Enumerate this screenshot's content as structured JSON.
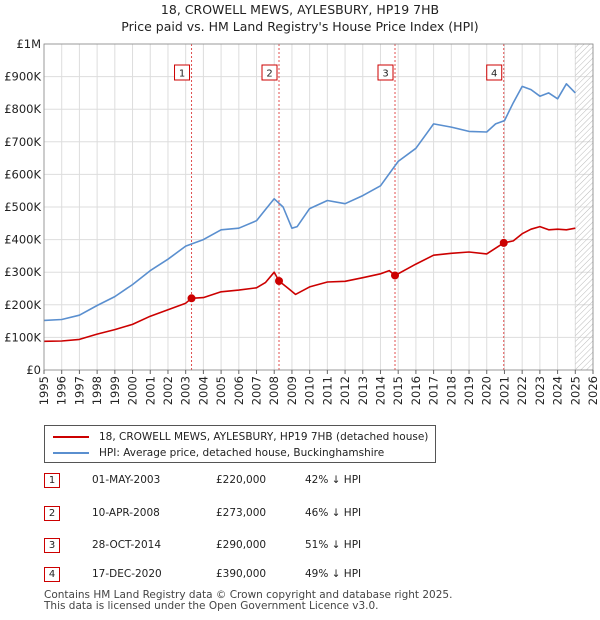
{
  "chart_data": {
    "type": "line",
    "title": "18, CROWELL MEWS, AYLESBURY, HP19 7HB",
    "subtitle": "Price paid vs. HM Land Registry's House Price Index (HPI)",
    "xlabel": "",
    "ylabel": "",
    "xlim": [
      1995,
      2026
    ],
    "ylim": [
      0,
      1000000
    ],
    "x_ticks": [
      "1995",
      "1996",
      "1997",
      "1998",
      "1999",
      "2000",
      "2001",
      "2002",
      "2003",
      "2004",
      "2005",
      "2006",
      "2007",
      "2008",
      "2009",
      "2010",
      "2011",
      "2012",
      "2013",
      "2014",
      "2015",
      "2016",
      "2017",
      "2018",
      "2019",
      "2020",
      "2021",
      "2022",
      "2023",
      "2024",
      "2025",
      "2026"
    ],
    "y_ticks": [
      {
        "value": 0,
        "label": "£0"
      },
      {
        "value": 100000,
        "label": "£100K"
      },
      {
        "value": 200000,
        "label": "£200K"
      },
      {
        "value": 300000,
        "label": "£300K"
      },
      {
        "value": 400000,
        "label": "£400K"
      },
      {
        "value": 500000,
        "label": "£500K"
      },
      {
        "value": 600000,
        "label": "£600K"
      },
      {
        "value": 700000,
        "label": "£700K"
      },
      {
        "value": 800000,
        "label": "£800K"
      },
      {
        "value": 900000,
        "label": "£900K"
      },
      {
        "value": 1000000,
        "label": "£1M"
      }
    ],
    "grid": true,
    "hatch_from": 2025.0,
    "series": [
      {
        "name": "18, CROWELL MEWS, AYLESBURY, HP19 7HB (detached house)",
        "color": "#cc0000",
        "x": [
          1995.0,
          1996.0,
          1997.0,
          1998.0,
          1999.0,
          2000.0,
          2001.0,
          2002.0,
          2003.0,
          2003.33,
          2004.0,
          2005.0,
          2006.0,
          2007.0,
          2007.5,
          2008.0,
          2008.27,
          2008.8,
          2009.2,
          2010.0,
          2011.0,
          2012.0,
          2013.0,
          2014.0,
          2014.5,
          2014.82,
          2015.5,
          2016.0,
          2017.0,
          2018.0,
          2019.0,
          2020.0,
          2020.96,
          2021.5,
          2022.0,
          2022.5,
          2023.0,
          2023.5,
          2024.0,
          2024.5,
          2025.0
        ],
        "y": [
          88000,
          89000,
          94000,
          110000,
          124000,
          140000,
          165000,
          185000,
          205000,
          220000,
          222000,
          240000,
          245000,
          252000,
          268000,
          300000,
          273000,
          250000,
          232000,
          255000,
          270000,
          272000,
          283000,
          295000,
          305000,
          290000,
          310000,
          325000,
          352000,
          358000,
          362000,
          356000,
          390000,
          396000,
          418000,
          432000,
          440000,
          430000,
          432000,
          430000,
          435000
        ]
      },
      {
        "name": "HPI: Average price, detached house, Buckinghamshire",
        "color": "#5a8fcf",
        "x": [
          1995.0,
          1996.0,
          1997.0,
          1998.0,
          1999.0,
          2000.0,
          2001.0,
          2002.0,
          2003.0,
          2004.0,
          2005.0,
          2006.0,
          2007.0,
          2007.5,
          2008.0,
          2008.5,
          2009.0,
          2009.3,
          2010.0,
          2011.0,
          2012.0,
          2013.0,
          2014.0,
          2015.0,
          2016.0,
          2017.0,
          2018.0,
          2019.0,
          2020.0,
          2020.5,
          2021.0,
          2021.5,
          2022.0,
          2022.5,
          2023.0,
          2023.5,
          2024.0,
          2024.5,
          2025.0
        ],
        "y": [
          152000,
          155000,
          168000,
          198000,
          225000,
          262000,
          305000,
          340000,
          380000,
          400000,
          430000,
          435000,
          458000,
          492000,
          525000,
          500000,
          435000,
          440000,
          495000,
          520000,
          510000,
          535000,
          565000,
          640000,
          680000,
          755000,
          745000,
          732000,
          730000,
          755000,
          765000,
          820000,
          870000,
          860000,
          840000,
          850000,
          832000,
          878000,
          850000
        ]
      }
    ],
    "sales": [
      {
        "label": "1",
        "x": 2003.33,
        "y": 220000,
        "date": "01-MAY-2003",
        "price": "£220,000",
        "hpi": "42% ↓ HPI"
      },
      {
        "label": "2",
        "x": 2008.27,
        "y": 273000,
        "date": "10-APR-2008",
        "price": "£273,000",
        "hpi": "46% ↓ HPI"
      },
      {
        "label": "3",
        "x": 2014.82,
        "y": 290000,
        "date": "28-OCT-2014",
        "price": "£290,000",
        "hpi": "51% ↓ HPI"
      },
      {
        "label": "4",
        "x": 2020.96,
        "y": 390000,
        "date": "17-DEC-2020",
        "price": "£390,000",
        "hpi": "49% ↓ HPI"
      }
    ]
  },
  "footer": {
    "line1": "Contains HM Land Registry data © Crown copyright and database right 2025.",
    "line2": "This data is licensed under the Open Government Licence v3.0."
  }
}
